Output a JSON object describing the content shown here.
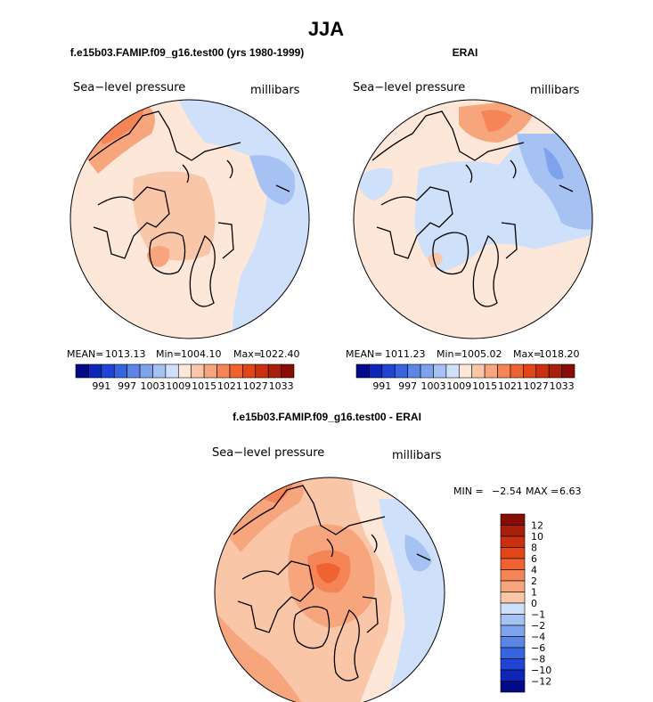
{
  "chart_data": {
    "type": "map",
    "season_title": "JJA",
    "colors": {
      "neg": [
        "#030a8a",
        "#0f25b8",
        "#1f44d6",
        "#3765e0",
        "#5b86e6",
        "#7ea2eb",
        "#a6c2f2",
        "#cfe0fa"
      ],
      "pos": [
        "#fde7d8",
        "#fac6a8",
        "#f7a57c",
        "#f58557",
        "#ee6330",
        "#e24518",
        "#c93010",
        "#a81f0c",
        "#8a0d05"
      ],
      "land_line": "#000000"
    },
    "panels": [
      {
        "name": "model",
        "title": "f.e15b03.FAMIP.f09_g16.test00 (yrs 1980-1999)",
        "left_label": "Sea−level pressure",
        "right_label": "millibars",
        "stats": {
          "mean_label": "MEAN=",
          "mean": "1013.13",
          "min_label": "Min=",
          "min": "1004.10",
          "max_label": "Max=",
          "max": "1022.40"
        },
        "colorbar_labels": [
          "991",
          "997",
          "1003",
          "1009",
          "1015",
          "1021",
          "1027",
          "1033"
        ]
      },
      {
        "name": "obs",
        "title": "ERAI",
        "left_label": "Sea−level pressure",
        "right_label": "millibars",
        "stats": {
          "mean_label": "MEAN=",
          "mean": "1011.23",
          "min_label": "Min=",
          "min": "1005.02",
          "max_label": "Max=",
          "max": "1018.20"
        },
        "colorbar_labels": [
          "991",
          "997",
          "1003",
          "1009",
          "1015",
          "1021",
          "1027",
          "1033"
        ]
      },
      {
        "name": "diff",
        "title": "f.e15b03.FAMIP.f09_g16.test00 - ERAI",
        "left_label": "Sea−level pressure",
        "right_label": "millibars",
        "stats": {
          "min_label": "MIN =",
          "min": "−2.54",
          "max_label": "MAX =",
          "max": "6.63"
        },
        "colorbar_labels": [
          "12",
          "10",
          "8",
          "6",
          "4",
          "2",
          "1",
          "0",
          "−1",
          "−2",
          "−4",
          "−6",
          "−8",
          "−10",
          "−12"
        ]
      }
    ]
  }
}
